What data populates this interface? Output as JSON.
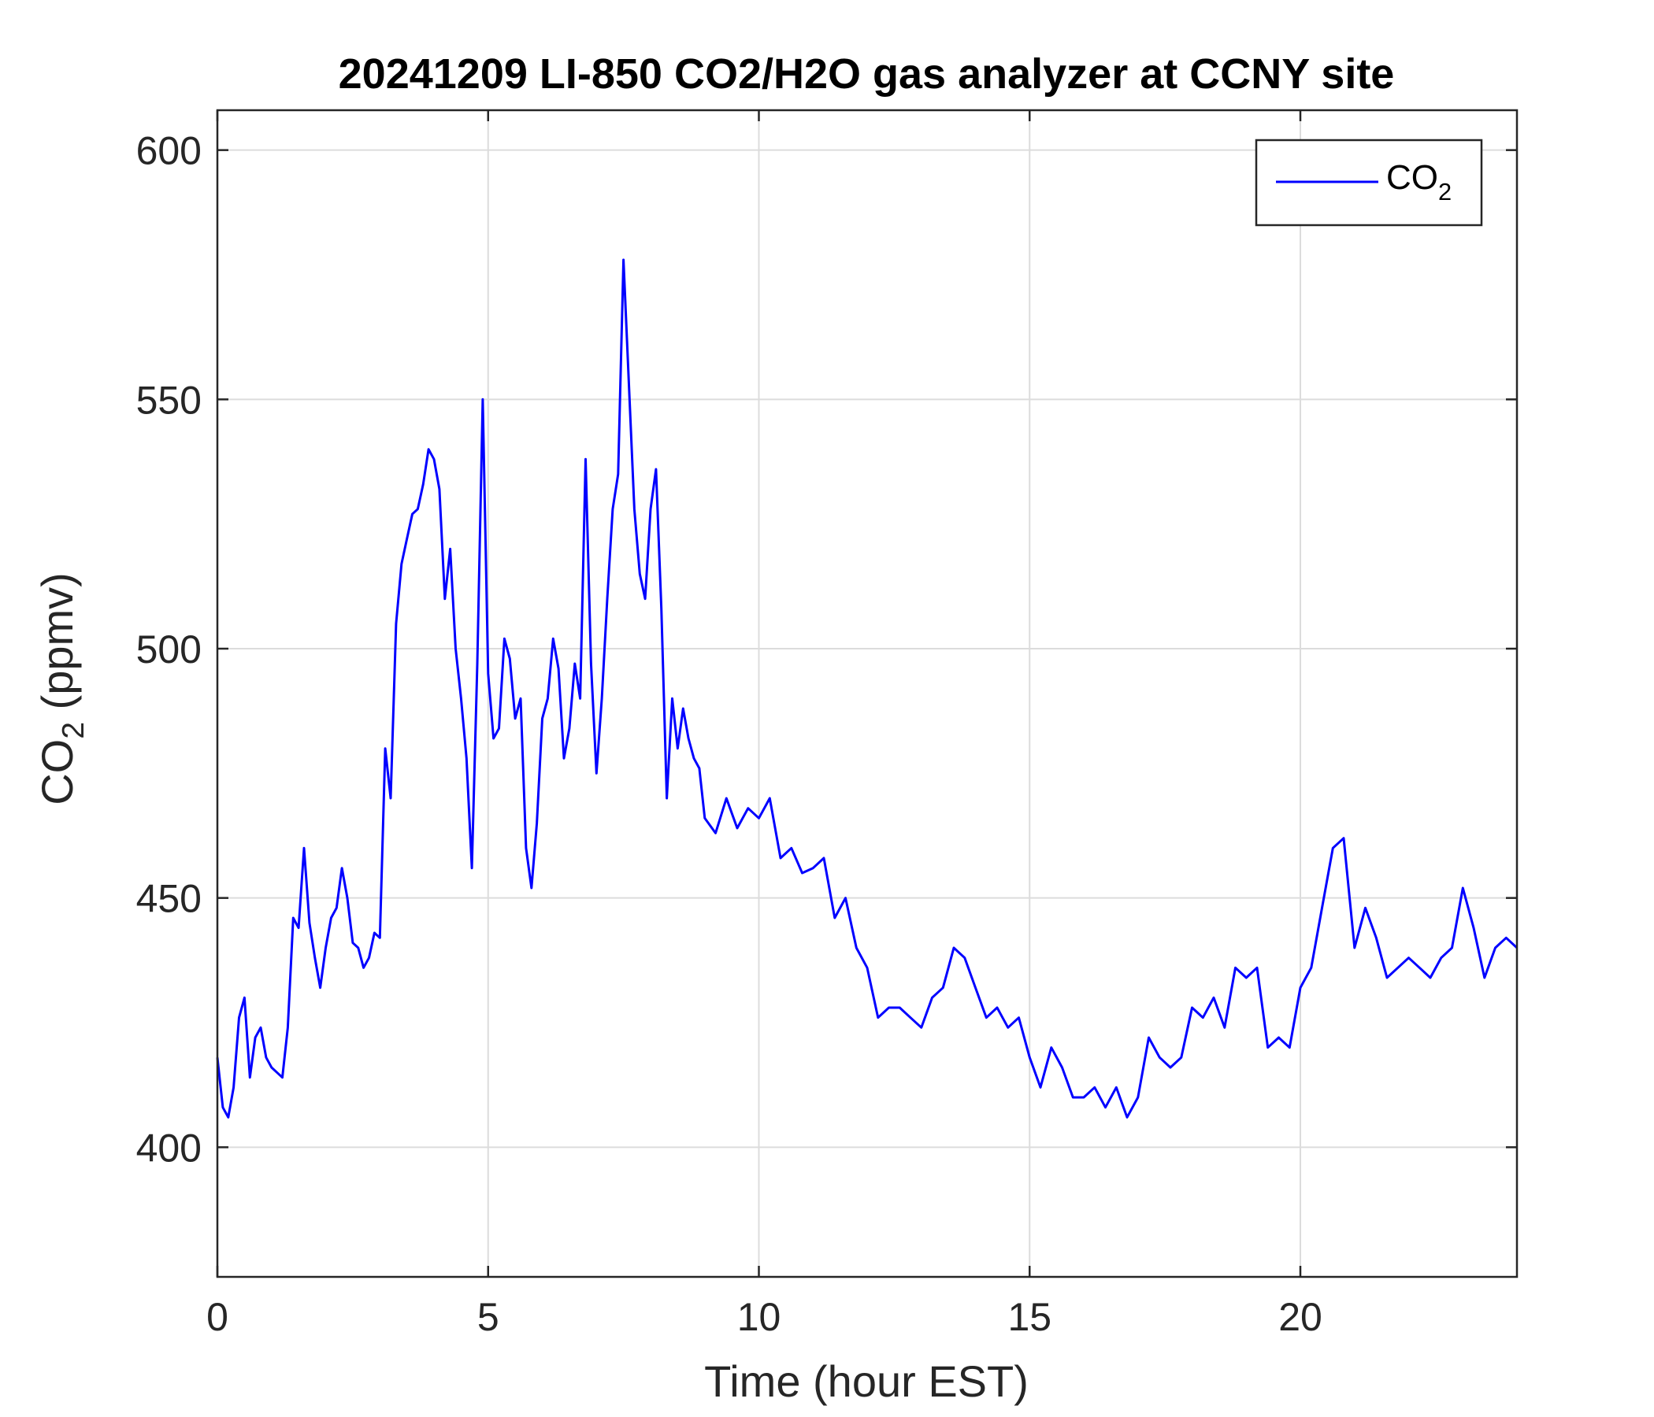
{
  "chart_data": {
    "type": "line",
    "title": "20241209 LI-850 CO2/H2O gas analyzer at CCNY site",
    "xlabel": "Time (hour EST)",
    "ylabel": {
      "main": "CO",
      "sub": "2",
      "suffix": " (ppmv)"
    },
    "xlim": [
      0,
      24
    ],
    "ylim": [
      374,
      608
    ],
    "x_ticks": [
      0,
      5,
      10,
      15,
      20
    ],
    "y_ticks": [
      400,
      450,
      500,
      550,
      600
    ],
    "grid": true,
    "legend": {
      "placement": "top-right",
      "label_main": "CO",
      "label_sub": "2"
    },
    "colors": {
      "series": "#0000ff",
      "axes": "#262626",
      "grid": "#dcdcdc"
    },
    "series": [
      {
        "name": "CO2",
        "x": [
          0.0,
          0.1,
          0.2,
          0.3,
          0.4,
          0.5,
          0.6,
          0.7,
          0.8,
          0.9,
          1.0,
          1.1,
          1.2,
          1.3,
          1.4,
          1.5,
          1.6,
          1.7,
          1.8,
          1.9,
          2.0,
          2.1,
          2.2,
          2.3,
          2.4,
          2.5,
          2.6,
          2.7,
          2.8,
          2.9,
          3.0,
          3.1,
          3.2,
          3.3,
          3.4,
          3.5,
          3.6,
          3.7,
          3.8,
          3.9,
          4.0,
          4.1,
          4.2,
          4.3,
          4.4,
          4.5,
          4.6,
          4.7,
          4.8,
          4.9,
          5.0,
          5.1,
          5.2,
          5.3,
          5.4,
          5.5,
          5.6,
          5.7,
          5.8,
          5.9,
          6.0,
          6.1,
          6.2,
          6.3,
          6.4,
          6.5,
          6.6,
          6.7,
          6.8,
          6.9,
          7.0,
          7.1,
          7.2,
          7.3,
          7.4,
          7.5,
          7.6,
          7.7,
          7.8,
          7.9,
          8.0,
          8.1,
          8.2,
          8.3,
          8.4,
          8.5,
          8.6,
          8.7,
          8.8,
          8.9,
          9.0,
          9.2,
          9.4,
          9.6,
          9.8,
          10.0,
          10.2,
          10.4,
          10.6,
          10.8,
          11.0,
          11.2,
          11.4,
          11.6,
          11.8,
          12.0,
          12.2,
          12.4,
          12.6,
          12.8,
          13.0,
          13.2,
          13.4,
          13.6,
          13.8,
          14.0,
          14.2,
          14.4,
          14.6,
          14.8,
          15.0,
          15.2,
          15.4,
          15.6,
          15.8,
          16.0,
          16.2,
          16.4,
          16.6,
          16.8,
          17.0,
          17.2,
          17.4,
          17.6,
          17.8,
          18.0,
          18.2,
          18.4,
          18.6,
          18.8,
          19.0,
          19.2,
          19.4,
          19.6,
          19.8,
          20.0,
          20.2,
          20.4,
          20.6,
          20.8,
          21.0,
          21.2,
          21.4,
          21.6,
          21.8,
          22.0,
          22.2,
          22.4,
          22.6,
          22.8,
          23.0,
          23.2,
          23.4,
          23.6,
          23.8,
          24.0
        ],
        "y": [
          418,
          408,
          406,
          412,
          426,
          430,
          414,
          422,
          424,
          418,
          416,
          415,
          414,
          424,
          446,
          444,
          460,
          445,
          438,
          432,
          440,
          446,
          448,
          456,
          450,
          441,
          440,
          436,
          438,
          443,
          442,
          480,
          470,
          505,
          517,
          522,
          527,
          528,
          533,
          540,
          538,
          532,
          510,
          520,
          500,
          490,
          478,
          456,
          497,
          550,
          495,
          482,
          484,
          502,
          498,
          486,
          490,
          460,
          452,
          465,
          486,
          490,
          502,
          496,
          478,
          484,
          497,
          490,
          538,
          497,
          475,
          490,
          510,
          528,
          535,
          578,
          553,
          528,
          515,
          510,
          528,
          536,
          508,
          470,
          490,
          480,
          488,
          482,
          478,
          476,
          466,
          463,
          470,
          464,
          468,
          466,
          470,
          458,
          460,
          455,
          456,
          458,
          446,
          450,
          440,
          436,
          426,
          428,
          428,
          426,
          424,
          430,
          432,
          440,
          438,
          432,
          426,
          428,
          424,
          426,
          418,
          412,
          420,
          416,
          410,
          410,
          412,
          408,
          412,
          406,
          410,
          422,
          418,
          416,
          418,
          428,
          426,
          430,
          424,
          436,
          434,
          436,
          420,
          422,
          420,
          432,
          436,
          448,
          460,
          462,
          440,
          448,
          442,
          434,
          436,
          438,
          436,
          434,
          438,
          440,
          452,
          444,
          434,
          440,
          442,
          440
        ]
      }
    ]
  }
}
